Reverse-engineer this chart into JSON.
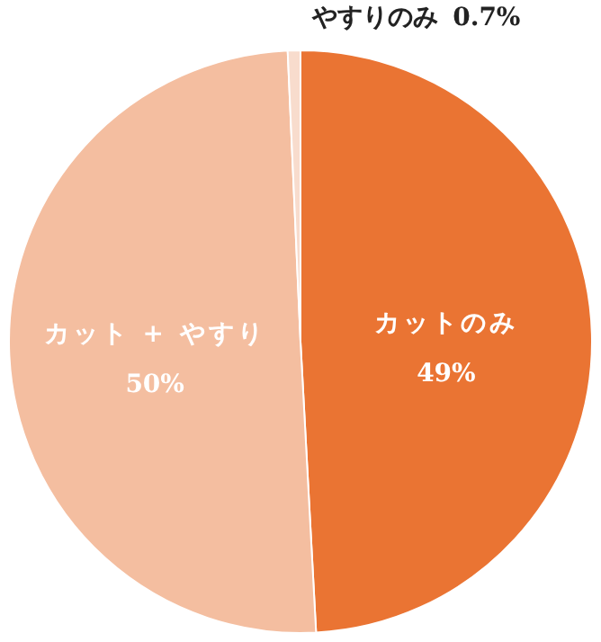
{
  "chart_data": {
    "type": "pie",
    "categories": [
      "カットのみ",
      "カット + やすり",
      "やすりのみ"
    ],
    "values": [
      49,
      50,
      0.7
    ],
    "value_labels": [
      "49%",
      "50%",
      "0.7%"
    ],
    "colors": [
      "#ea7433",
      "#f4bea0",
      "#f8dccd"
    ]
  }
}
